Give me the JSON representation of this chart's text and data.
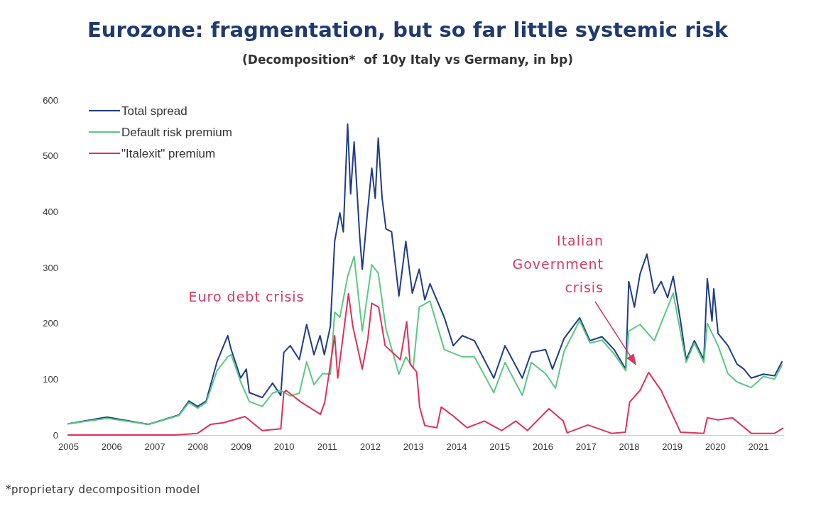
{
  "chart_data": {
    "type": "line",
    "title": "Eurozone: fragmentation, but so far little systemic risk",
    "subtitle": "(Decomposition*  of 10y Italy vs Germany, in bp)",
    "xlim": [
      2005,
      2021.6
    ],
    "xticks": [
      2005,
      2006,
      2007,
      2008,
      2009,
      2010,
      2011,
      2012,
      2013,
      2014,
      2015,
      2016,
      2017,
      2018,
      2019,
      2020,
      2021
    ],
    "ylim": [
      0,
      600
    ],
    "yticks": [
      0,
      100,
      200,
      300,
      400,
      500,
      600
    ],
    "grid": false,
    "legend": "top left",
    "line_style": "solid",
    "marker": "none",
    "series": [
      {
        "name": "Total spread",
        "color": "#1f3c88",
        "x": [
          2005.0,
          2005.9,
          2006.86,
          2007.57,
          2007.8,
          2008.0,
          2008.2,
          2008.45,
          2008.7,
          2008.78,
          2009.0,
          2009.13,
          2009.2,
          2009.5,
          2009.74,
          2009.93,
          2010.0,
          2010.15,
          2010.36,
          2010.53,
          2010.7,
          2010.84,
          2010.94,
          2011.08,
          2011.18,
          2011.3,
          2011.38,
          2011.48,
          2011.55,
          2011.63,
          2011.76,
          2011.82,
          2011.93,
          2012.04,
          2012.12,
          2012.19,
          2012.28,
          2012.37,
          2012.5,
          2012.67,
          2012.83,
          2012.98,
          2013.14,
          2013.27,
          2013.39,
          2013.72,
          2013.93,
          2014.14,
          2014.42,
          2014.87,
          2015.13,
          2015.53,
          2015.74,
          2016.07,
          2016.23,
          2016.5,
          2016.86,
          2017.1,
          2017.38,
          2017.66,
          2017.93,
          2018.0,
          2018.13,
          2018.26,
          2018.42,
          2018.59,
          2018.75,
          2018.9,
          2019.03,
          2019.2,
          2019.33,
          2019.52,
          2019.74,
          2019.82,
          2019.93,
          2019.97,
          2020.07,
          2020.3,
          2020.51,
          2020.67,
          2020.84,
          2021.12,
          2021.38,
          2021.55
        ],
        "values": [
          20,
          32,
          19,
          36,
          61,
          51,
          61,
          131,
          178,
          153,
          102,
          118,
          76,
          67,
          93,
          71,
          148,
          160,
          135,
          198,
          144,
          178,
          144,
          195,
          347,
          398,
          364,
          557,
          432,
          525,
          356,
          297,
          390,
          478,
          424,
          532,
          424,
          369,
          364,
          249,
          347,
          254,
          297,
          242,
          271,
          211,
          160,
          178,
          169,
          102,
          160,
          102,
          148,
          153,
          118,
          173,
          210,
          169,
          176,
          153,
          118,
          275,
          229,
          288,
          324,
          254,
          275,
          246,
          284,
          204,
          135,
          169,
          135,
          280,
          204,
          262,
          182,
          160,
          127,
          118,
          102,
          109,
          106,
          131
        ]
      },
      {
        "name": "Default risk premium",
        "color": "#5cc782",
        "x": [
          2005.0,
          2005.9,
          2006.86,
          2007.57,
          2007.8,
          2008.0,
          2008.2,
          2008.45,
          2008.7,
          2008.78,
          2009.0,
          2009.2,
          2009.5,
          2009.74,
          2009.93,
          2010.15,
          2010.36,
          2010.53,
          2010.7,
          2010.9,
          2011.08,
          2011.18,
          2011.3,
          2011.48,
          2011.63,
          2011.82,
          2012.04,
          2012.19,
          2012.37,
          2012.67,
          2012.83,
          2013.0,
          2013.14,
          2013.39,
          2013.72,
          2014.14,
          2014.42,
          2014.87,
          2015.13,
          2015.53,
          2015.74,
          2016.07,
          2016.3,
          2016.5,
          2016.86,
          2017.1,
          2017.38,
          2017.66,
          2017.93,
          2018.0,
          2018.26,
          2018.59,
          2019.03,
          2019.33,
          2019.52,
          2019.74,
          2019.82,
          2020.07,
          2020.3,
          2020.51,
          2020.84,
          2021.12,
          2021.38,
          2021.55
        ],
        "values": [
          20,
          30,
          19,
          35,
          58,
          48,
          58,
          115,
          140,
          144,
          95,
          60,
          51,
          75,
          80,
          70,
          75,
          131,
          90,
          110,
          109,
          220,
          211,
          284,
          320,
          186,
          305,
          290,
          190,
          109,
          140,
          120,
          229,
          240,
          153,
          140,
          140,
          76,
          130,
          71,
          130,
          110,
          84,
          150,
          205,
          165,
          170,
          145,
          115,
          186,
          198,
          169,
          254,
          130,
          165,
          130,
          200,
          160,
          110,
          95,
          85,
          105,
          100,
          125
        ]
      },
      {
        "name": "\"Italexit\" premium",
        "color": "#e0305a",
        "x": [
          2005.0,
          2007.5,
          2008.0,
          2008.3,
          2008.6,
          2009.1,
          2009.5,
          2009.93,
          2010.0,
          2010.05,
          2010.4,
          2010.85,
          2010.95,
          2011.18,
          2011.25,
          2011.5,
          2011.6,
          2011.82,
          2011.95,
          2012.04,
          2012.2,
          2012.35,
          2012.7,
          2012.85,
          2012.93,
          2013.08,
          2013.15,
          2013.27,
          2013.55,
          2013.65,
          2013.93,
          2014.25,
          2014.65,
          2015.05,
          2015.38,
          2015.65,
          2016.15,
          2016.48,
          2016.57,
          2017.05,
          2017.6,
          2017.92,
          2018.02,
          2018.26,
          2018.46,
          2018.75,
          2019.2,
          2019.74,
          2019.82,
          2020.07,
          2020.4,
          2020.67,
          2020.84,
          2021.38,
          2021.57
        ],
        "values": [
          0,
          0,
          3,
          19,
          22,
          33,
          8,
          11,
          76,
          80,
          59,
          37,
          59,
          178,
          102,
          253,
          195,
          118,
          173,
          236,
          229,
          160,
          135,
          203,
          127,
          113,
          50,
          17,
          13,
          50,
          34,
          13,
          25,
          8,
          25,
          8,
          47,
          25,
          4,
          18,
          3,
          5,
          59,
          80,
          112,
          80,
          5,
          3,
          31,
          27,
          31,
          14,
          3,
          3,
          12
        ]
      }
    ],
    "annotations": [
      "Euro debt crisis",
      "Italian Government crisis",
      "*proprietary decomposition model"
    ]
  }
}
